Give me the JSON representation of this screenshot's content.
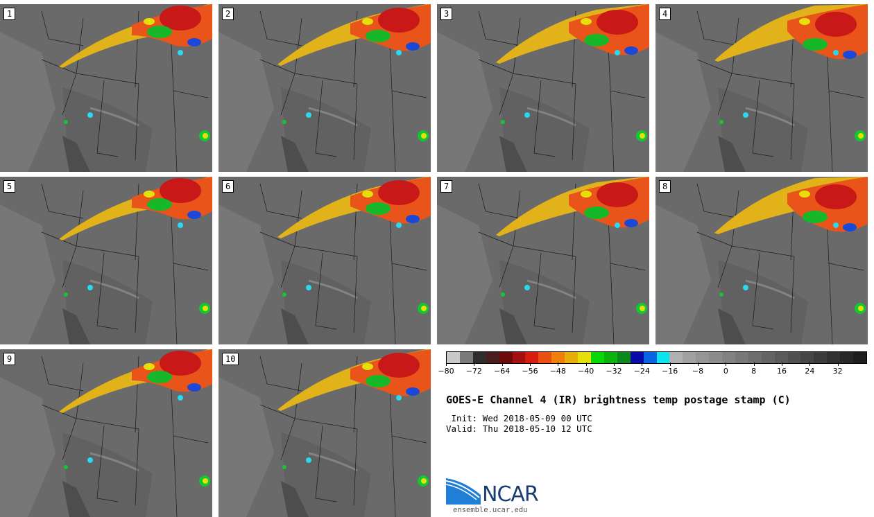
{
  "panels": [
    {
      "label": "1"
    },
    {
      "label": "2"
    },
    {
      "label": "3"
    },
    {
      "label": "4"
    },
    {
      "label": "5"
    },
    {
      "label": "6"
    },
    {
      "label": "7"
    },
    {
      "label": "8"
    },
    {
      "label": "9"
    },
    {
      "label": "10"
    }
  ],
  "colorbar": {
    "colors": [
      "#c8c8c8",
      "#7a7a7a",
      "#2e2e2e",
      "#4a1e1e",
      "#6e0c0c",
      "#a40f0f",
      "#d81c10",
      "#ec5010",
      "#f07f0c",
      "#e8ad0a",
      "#e6e00a",
      "#08d808",
      "#0ab40a",
      "#0a8a1a",
      "#0a0aa8",
      "#0a64e6",
      "#0ae6f0",
      "#b0b0b0",
      "#a0a0a0",
      "#969696",
      "#8c8c8c",
      "#828282",
      "#787878",
      "#6e6e6e",
      "#646464",
      "#5a5a5a",
      "#505050",
      "#464646",
      "#3c3c3c",
      "#323232",
      "#282828",
      "#1e1e1e"
    ],
    "min": -80,
    "max": 40,
    "tick_labels": [
      "−80",
      "−72",
      "−64",
      "−56",
      "−48",
      "−40",
      "−32",
      "−24",
      "−16",
      "−8",
      "0",
      "8",
      "16",
      "24",
      "32"
    ]
  },
  "title": "GOES-E Channel 4 (IR) brightness temp postage stamp (C)",
  "init_line": " Init: Wed 2018-05-09 00 UTC",
  "valid_line": "Valid: Thu 2018-05-10 12 UTC",
  "logo": {
    "name": "NCAR",
    "url": "ensemble.ucar.edu"
  }
}
